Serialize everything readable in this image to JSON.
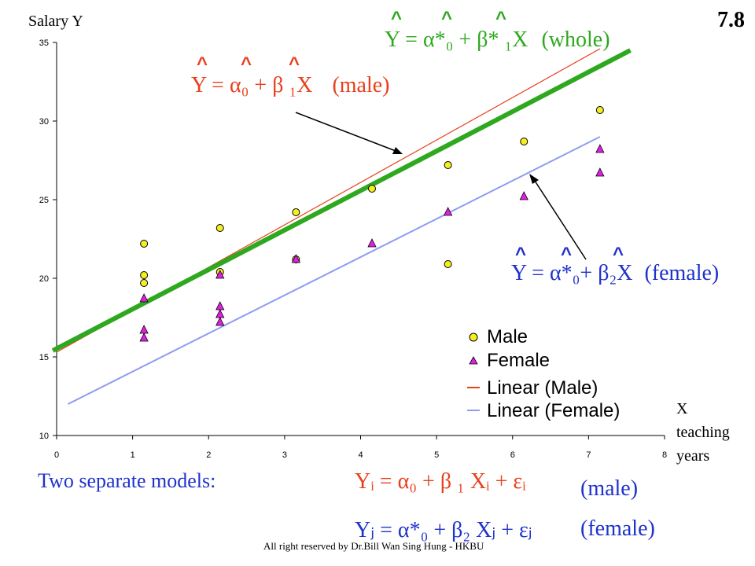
{
  "slide_number": "7.8",
  "labels": {
    "y_axis": "Salary Y",
    "x_axis_lines": [
      "X",
      "teaching",
      "years"
    ],
    "two_models": "Two separate models:",
    "copyright": "All right reserved by Dr.Bill Wan Sing Hung - HKBU"
  },
  "colors": {
    "male_line": "#e8401c",
    "female_line": "#8f9cf0",
    "whole_line": "#2ea81e",
    "male_marker": "#f5ef1e",
    "female_marker": "#e020e0",
    "equation_red": "#e8401c",
    "equation_blue": "#1e32cc"
  },
  "equations": {
    "whole": {
      "text": "Y = α*₀ + β* ₁X",
      "tag": "(whole)",
      "hat": "^"
    },
    "male": {
      "text": "Y = α₀ + β ₁X",
      "tag": "(male)",
      "hat": "^"
    },
    "female": {
      "text": "Y = α*₀+ β₂X",
      "tag": "(female)",
      "hat": "^"
    },
    "model_male": {
      "text": "Yᵢ = α₀ + β ₁ Xᵢ + εᵢ",
      "tag": "(male)"
    },
    "model_female": {
      "text": "Yⱼ = α*₀ + β₂ Xⱼ + εⱼ",
      "tag": "(female)"
    }
  },
  "chart_data": {
    "type": "scatter",
    "xlim": [
      0,
      8
    ],
    "ylim": [
      10,
      35
    ],
    "x_ticks": [
      0,
      1,
      2,
      3,
      4,
      5,
      6,
      7,
      8
    ],
    "y_ticks": [
      10,
      15,
      20,
      25,
      30,
      35
    ],
    "grid": false,
    "legend_position": "bottom-right",
    "series": [
      {
        "name": "Male",
        "marker": "circle",
        "x": [
          1.15,
          1.15,
          1.15,
          2.15,
          2.15,
          3.15,
          3.15,
          4.15,
          5.15,
          5.15,
          6.15,
          7.15
        ],
        "y": [
          22.2,
          20.2,
          19.7,
          23.2,
          20.4,
          24.2,
          21.2,
          25.7,
          27.2,
          20.9,
          28.7,
          30.7
        ]
      },
      {
        "name": "Female",
        "marker": "triangle",
        "x": [
          1.15,
          1.15,
          1.15,
          2.15,
          2.15,
          2.15,
          2.15,
          3.15,
          4.15,
          5.15,
          6.15,
          7.15,
          7.15
        ],
        "y": [
          18.7,
          16.7,
          16.2,
          20.2,
          18.2,
          17.7,
          17.2,
          21.2,
          22.2,
          24.2,
          25.2,
          28.2,
          26.7
        ]
      }
    ],
    "trendlines": [
      {
        "name": "Linear (Male)",
        "x": [
          0,
          7.15
        ],
        "y": [
          15.3,
          34.6
        ]
      },
      {
        "name": "Linear (Female)",
        "x": [
          0.15,
          7.15
        ],
        "y": [
          12.0,
          29.0
        ]
      },
      {
        "name": "whole",
        "x": [
          -0.05,
          7.55
        ],
        "y": [
          15.4,
          34.5
        ]
      }
    ]
  }
}
